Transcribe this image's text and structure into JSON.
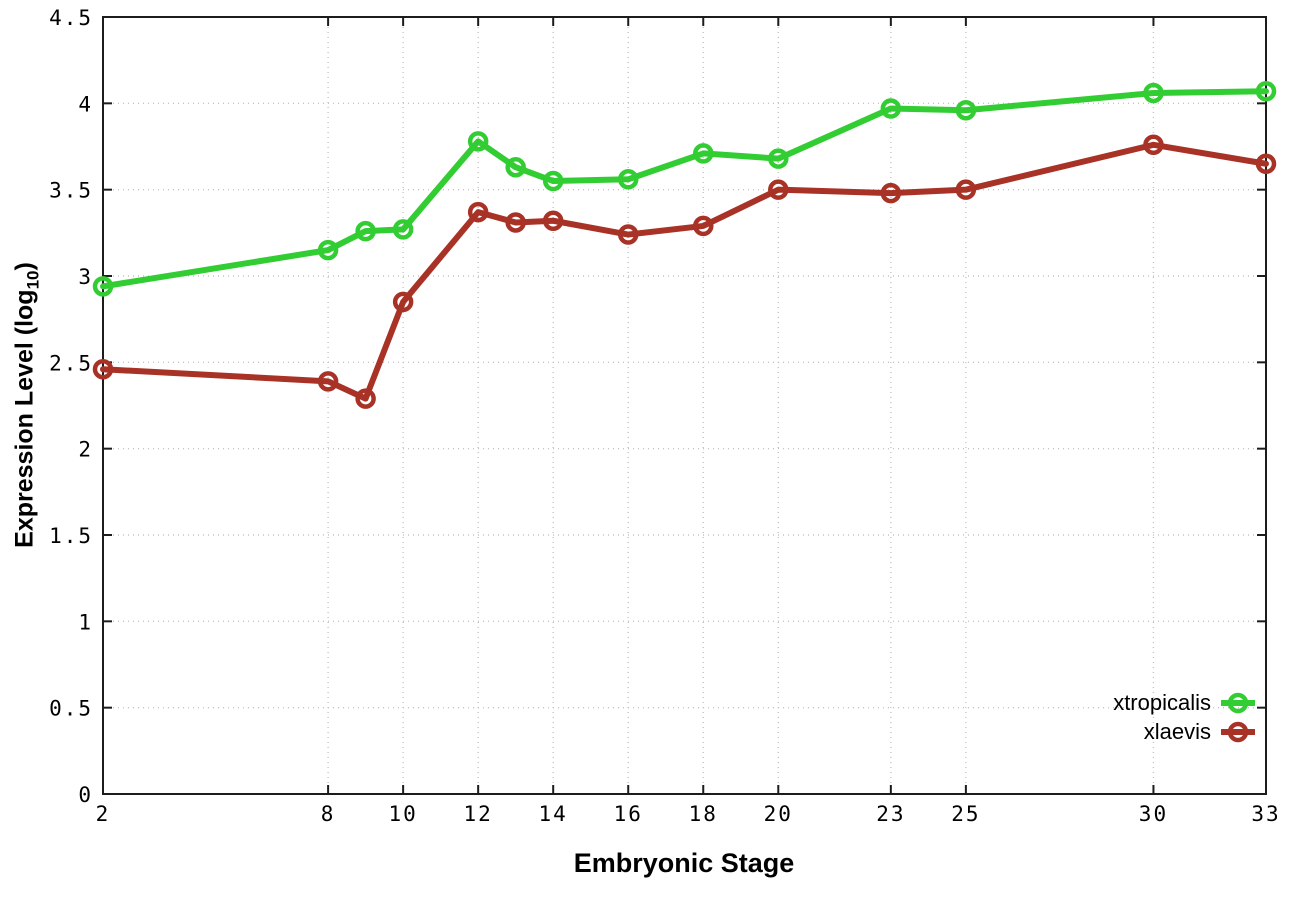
{
  "chart_data": {
    "type": "line",
    "title": "",
    "xlabel": "Embryonic Stage",
    "ylabel": "Expression Level (log10)",
    "xlim": [
      2,
      33
    ],
    "ylim": [
      0,
      4.5
    ],
    "x_ticks": [
      2,
      8,
      10,
      12,
      14,
      16,
      18,
      20,
      23,
      25,
      30,
      33
    ],
    "y_ticks": [
      0,
      0.5,
      1,
      1.5,
      2,
      2.5,
      3,
      3.5,
      4,
      4.5
    ],
    "grid": true,
    "legend_position": "bottom-right",
    "x": [
      2,
      8,
      9,
      10,
      12,
      13,
      14,
      16,
      18,
      20,
      23,
      25,
      30,
      33
    ],
    "series": [
      {
        "name": "xtropicalis",
        "color": "#32cd32",
        "values": [
          2.94,
          3.15,
          3.26,
          3.27,
          3.78,
          3.63,
          3.55,
          3.56,
          3.71,
          3.68,
          3.97,
          3.96,
          4.06,
          4.07
        ]
      },
      {
        "name": "xlaevis",
        "color": "#a93226",
        "values": [
          2.46,
          2.39,
          2.29,
          2.85,
          3.37,
          3.31,
          3.32,
          3.24,
          3.29,
          3.5,
          3.48,
          3.5,
          3.76,
          3.65
        ]
      }
    ],
    "colors": {
      "axis": "#1c1c1c",
      "grid": "#c4c4c4",
      "tick_text": "#000000"
    }
  },
  "axes": {
    "xlabel": "Embryonic Stage",
    "ylabel_prefix": "Expression Level (log",
    "ylabel_sub": "10",
    "ylabel_suffix": ")"
  },
  "legend": {
    "items": [
      {
        "label": "xtropicalis"
      },
      {
        "label": "xlaevis"
      }
    ]
  }
}
